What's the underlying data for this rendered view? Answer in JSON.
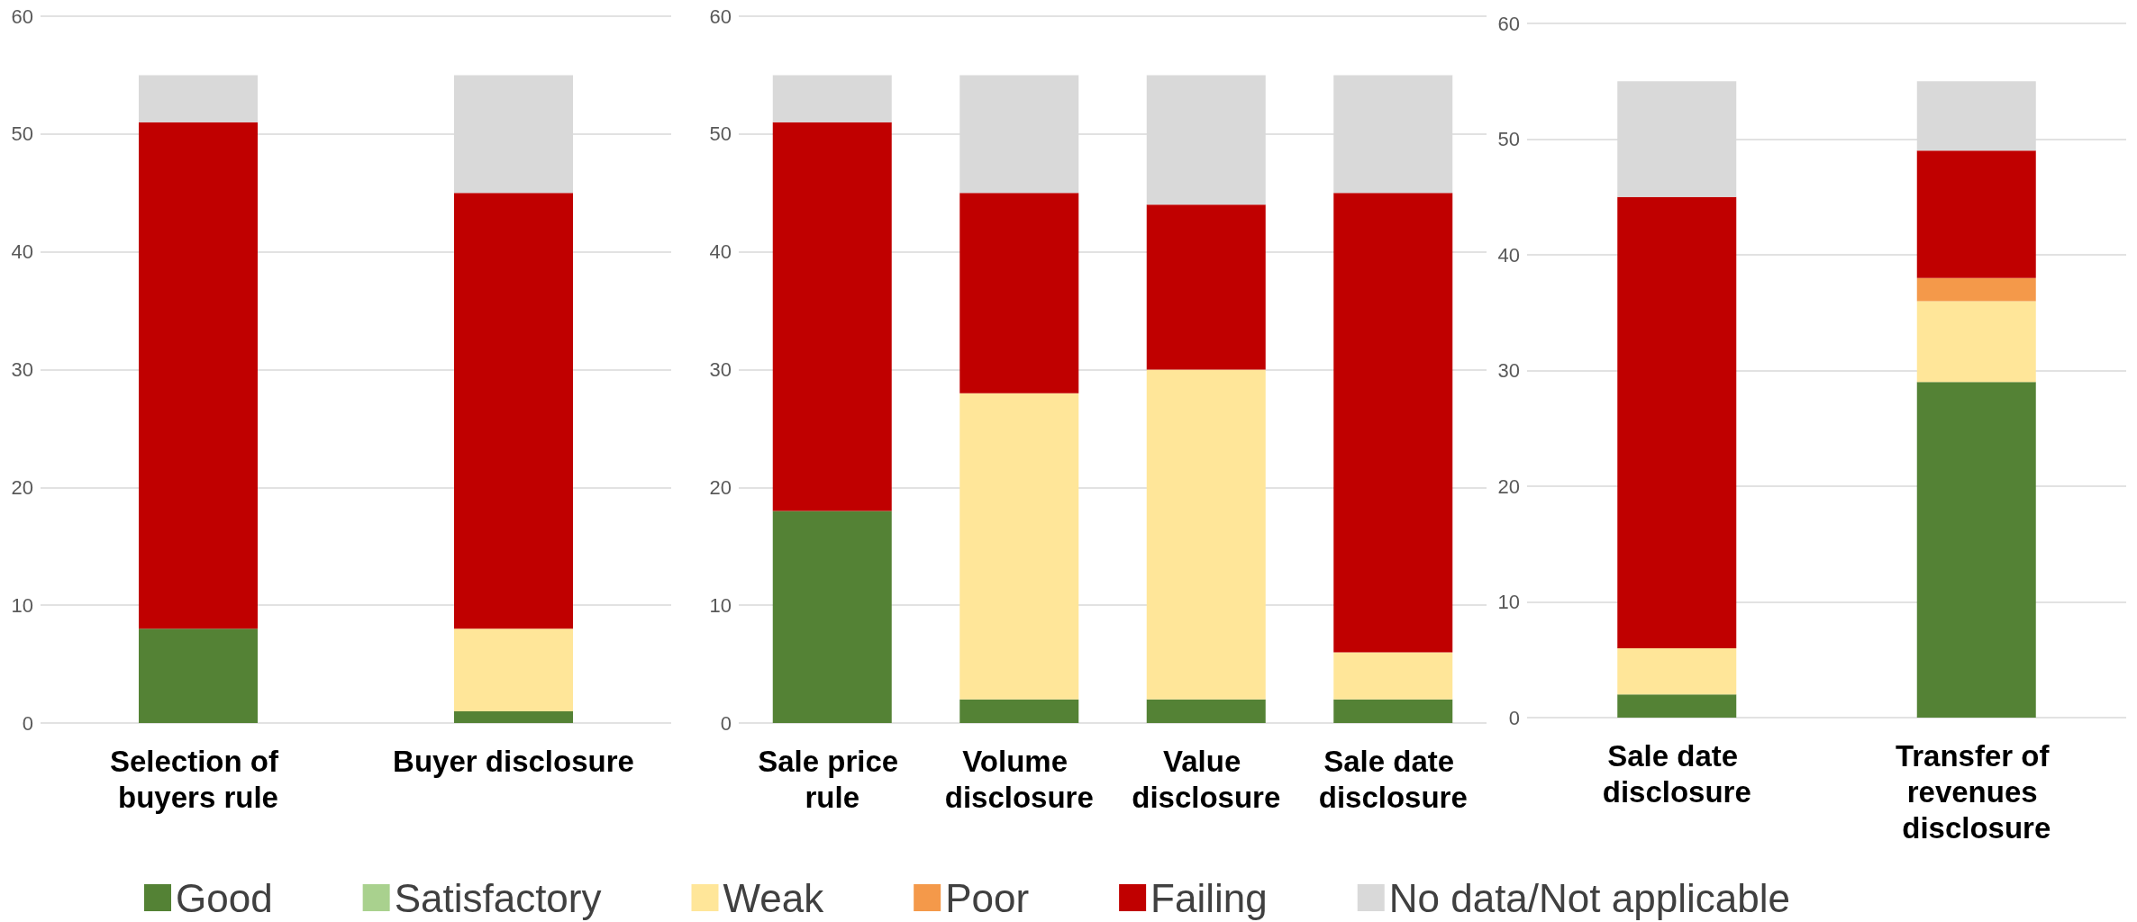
{
  "chart_data": [
    {
      "type": "bar",
      "stacked": true,
      "categories": [
        "Selection of buyers rule",
        "Buyer disclosure"
      ],
      "ylim": [
        0,
        60
      ],
      "yticks": [
        0,
        10,
        20,
        30,
        40,
        50,
        60
      ],
      "grid": "y",
      "legend": "bottom",
      "series": [
        {
          "name": "Good",
          "color": "#548235",
          "values": [
            8,
            1
          ]
        },
        {
          "name": "Satisfactory",
          "color": "#a9d18e",
          "values": [
            0,
            0
          ]
        },
        {
          "name": "Weak",
          "color": "#ffe699",
          "values": [
            0,
            7
          ]
        },
        {
          "name": "Poor",
          "color": "#f4994a",
          "values": [
            0,
            0
          ]
        },
        {
          "name": "Failing",
          "color": "#c00000",
          "values": [
            43,
            37
          ]
        },
        {
          "name": "No data/Not applicable",
          "color": "#d9d9d9",
          "values": [
            4,
            10
          ]
        }
      ]
    },
    {
      "type": "bar",
      "stacked": true,
      "categories": [
        "Sale price rule",
        "Volume disclosure",
        "Value disclosure",
        "Sale date disclosure"
      ],
      "ylim": [
        0,
        60
      ],
      "yticks": [
        0,
        10,
        20,
        30,
        40,
        50,
        60
      ],
      "grid": "y",
      "series": [
        {
          "color": "#548235",
          "values": [
            18,
            2,
            2,
            2
          ]
        },
        {
          "color": "#ffe699",
          "values": [
            0,
            26,
            28,
            4
          ]
        },
        {
          "color": "#c00000",
          "values": [
            33,
            17,
            14,
            39
          ]
        },
        {
          "color": "#d9d9d9",
          "values": [
            4,
            10,
            11,
            10
          ]
        }
      ]
    },
    {
      "type": "bar",
      "stacked": true,
      "categories": [
        "Sale date disclosure",
        "Transfer of revenues disclosure"
      ],
      "ylim": [
        0,
        60
      ],
      "yticks": [
        0,
        10,
        20,
        30,
        40,
        50,
        60
      ],
      "grid": "y",
      "series": [
        {
          "color": "#548235",
          "values": [
            2,
            29
          ]
        },
        {
          "color": "#ffe699",
          "values": [
            4,
            7
          ]
        },
        {
          "color": "#f4994a",
          "values": [
            0,
            2
          ]
        },
        {
          "color": "#c00000",
          "values": [
            39,
            11
          ]
        },
        {
          "color": "#d9d9d9",
          "values": [
            10,
            6
          ]
        }
      ]
    }
  ]
}
